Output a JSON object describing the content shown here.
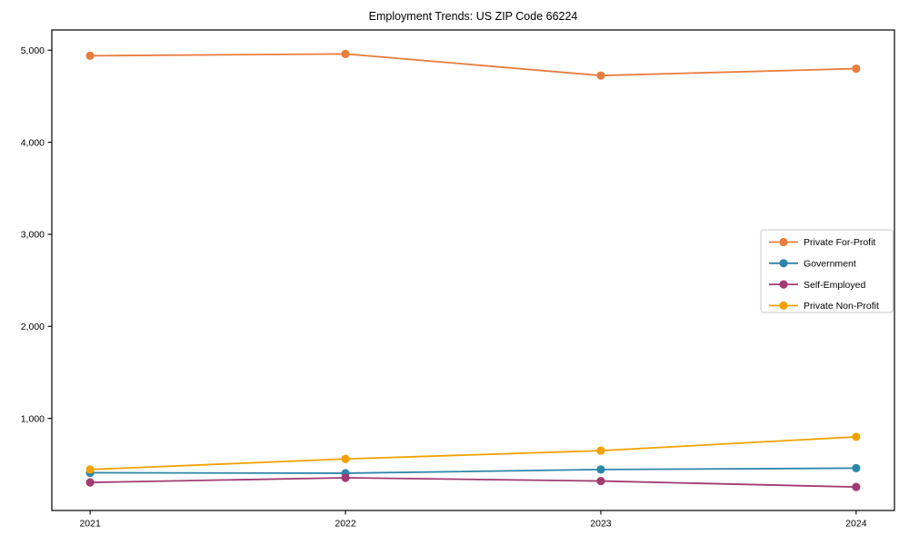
{
  "chart_data": {
    "type": "line",
    "title": "Employment Trends: US ZIP Code 66224",
    "x": [
      2021,
      2022,
      2023,
      2024
    ],
    "x_tick_labels": [
      "2021",
      "2022",
      "2023",
      "2024"
    ],
    "y_tick_values": [
      1000,
      2000,
      3000,
      4000,
      5000
    ],
    "y_tick_labels": [
      "1,000",
      "2,000",
      "3,000",
      "4,000",
      "5,000"
    ],
    "xlim": [
      2020.85,
      2024.15
    ],
    "ylim": [
      0,
      5220
    ],
    "grid": false,
    "legend_position": "center-right",
    "series": [
      {
        "name": "Private For-Profit",
        "color": "#E87D3E",
        "values": [
          4940,
          4960,
          4725,
          4800
        ]
      },
      {
        "name": "Government",
        "color": "#2E86AB",
        "values": [
          410,
          405,
          445,
          460
        ]
      },
      {
        "name": "Self-Employed",
        "color": "#A23B72",
        "values": [
          305,
          355,
          320,
          255
        ]
      },
      {
        "name": "Private Non-Profit",
        "color": "#F0A202",
        "values": [
          445,
          560,
          650,
          800
        ]
      }
    ],
    "colors": {
      "background": "#ffffff",
      "axis": "#000000",
      "text": "#000000",
      "legend_border": "#c9c9c9",
      "legend_background": "#ffffff"
    }
  }
}
